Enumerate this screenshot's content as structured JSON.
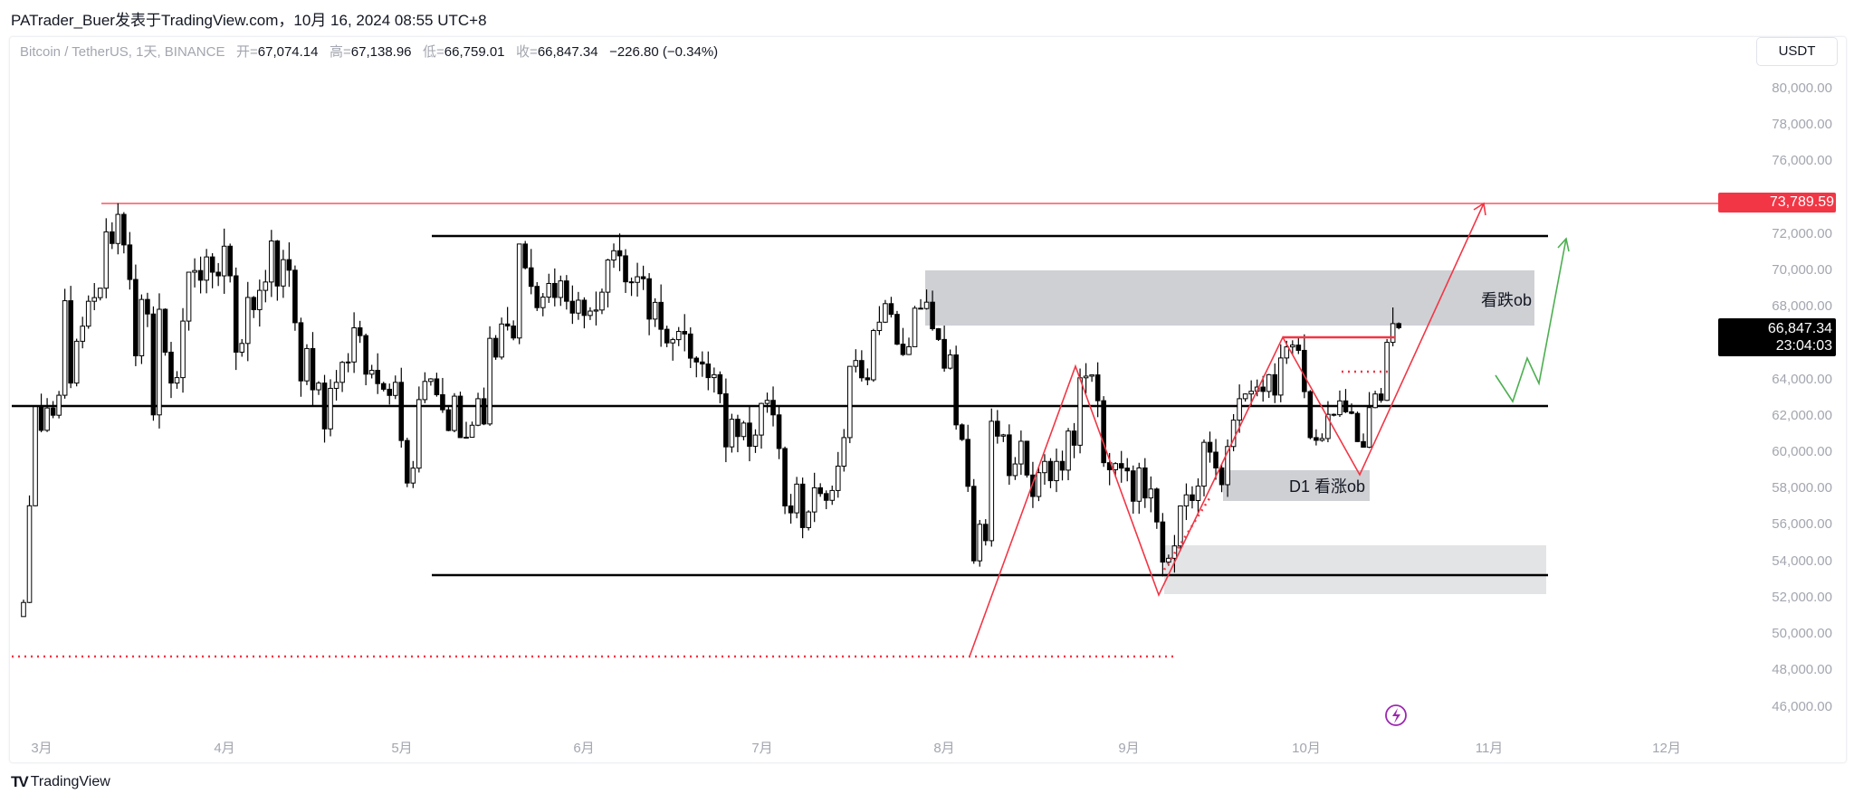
{
  "header": {
    "title": "PATrader_Buer发表于TradingView.com，10月 16, 2024 08:55 UTC+8"
  },
  "legend": {
    "symbol": "Bitcoin / TetherUS, 1天, BINANCE",
    "open_label": "开=",
    "open": "67,074.14",
    "high_label": "高=",
    "high": "67,138.96",
    "low_label": "低=",
    "low": "66,759.01",
    "close_label": "收=",
    "close": "66,847.34",
    "change": "−226.80 (−0.34%)"
  },
  "currency_button": "USDT",
  "price_axis": [
    "80,000.00",
    "78,000.00",
    "76,000.00",
    "72,000.00",
    "70,000.00",
    "68,000.00",
    "64,000.00",
    "62,000.00",
    "60,000.00",
    "58,000.00",
    "56,000.00",
    "54,000.00",
    "52,000.00",
    "50,000.00",
    "48,000.00",
    "46,000.00"
  ],
  "time_axis": [
    "3月",
    "4月",
    "5月",
    "6月",
    "7月",
    "8月",
    "9月",
    "10月",
    "11月",
    "12月"
  ],
  "price_tags": {
    "horizontal_line": "73,789.59",
    "last_price": "66,847.34",
    "countdown": "23:04:03"
  },
  "annotations": {
    "bearish_ob": "看跌ob",
    "bullish_ob": "D1 看涨ob"
  },
  "footer": {
    "logo_mark": "TV",
    "brand": "TradingView"
  },
  "colors": {
    "up": "#ffffff",
    "down": "#000000",
    "drawing_red": "#f23645",
    "drawing_green": "#4caf50",
    "zone_gray": "#cfd0d4",
    "zone_light": "#e3e4e6",
    "alert_purple": "#9c27b0"
  },
  "icons": {
    "alert": "lightning-icon"
  },
  "chart_data": {
    "type": "candlestick",
    "interval": "1D",
    "ylim": [
      45000,
      81000
    ],
    "closes": [
      51730,
      57050,
      62500,
      61200,
      62430,
      62030,
      63130,
      68330,
      63800,
      66100,
      66930,
      68300,
      68500,
      69020,
      72120,
      71480,
      73080,
      71400,
      69500,
      65300,
      68400,
      67600,
      62050,
      67860,
      65500,
      63800,
      64100,
      67210,
      69900,
      69990,
      69460,
      70740,
      69900,
      69700,
      71330,
      69700,
      65500,
      65980,
      68510,
      67840,
      68900,
      69360,
      71620,
      69140,
      70590,
      70010,
      67120,
      63920,
      65700,
      63430,
      63800,
      61280,
      63510,
      63840,
      64940,
      64960,
      66840,
      66410,
      64290,
      64500,
      63770,
      63460,
      63120,
      63840,
      60640,
      58300,
      59120,
      62890,
      63890,
      64030,
      63160,
      62330,
      61190,
      63080,
      60800,
      60820,
      61480,
      62940,
      61550,
      66260,
      65230,
      67050,
      66940,
      66280,
      71450,
      70140,
      69120,
      67950,
      68530,
      69280,
      68510,
      69420,
      68300,
      67650,
      68360,
      67520,
      67760,
      67820,
      68800,
      70570,
      71080,
      70800,
      69370,
      69340,
      69650,
      69540,
      67320,
      68240,
      66760,
      66010,
      66190,
      66640,
      66500,
      65170,
      64960,
      64850,
      64100,
      64260,
      63210,
      60290,
      61810,
      60860,
      61600,
      60320,
      60940,
      62680,
      62850,
      62050,
      60200,
      57040,
      56660,
      58240,
      55850,
      56710,
      58040,
      57720,
      57350,
      57890,
      59230,
      60800,
      64720,
      65040,
      64090,
      63980,
      66690,
      67150,
      68170,
      67580,
      65940,
      65370,
      65800,
      67920,
      67900,
      68250,
      66790,
      66200,
      64620,
      65350,
      61500,
      60700,
      58120,
      54020,
      56030,
      55130,
      61700,
      60880,
      60950,
      58710,
      59350,
      60600,
      58740,
      57560,
      58870,
      59490,
      58430,
      59490,
      59010,
      61160,
      60380,
      64090,
      64180,
      64250,
      62830,
      59420,
      59030,
      59370,
      59120,
      58970,
      57300,
      59130,
      57480,
      57970,
      56160,
      53950,
      54160,
      54840,
      57040,
      57650,
      57340,
      58130,
      60540,
      60000,
      59130,
      58210,
      60310,
      61760,
      62940,
      63200,
      63350,
      63580,
      63340,
      64260,
      63140,
      65180,
      65790,
      65890,
      65600,
      63330,
      60800,
      60650,
      60750,
      62080,
      62060,
      62820,
      62220,
      62130,
      60580,
      60270,
      62450,
      63200,
      62850,
      66040,
      67070,
      66847.34
    ],
    "last_candle": {
      "open": 67074.14,
      "high": 67138.96,
      "low": 66759.01,
      "close": 66847.34
    },
    "horizontal_levels": [
      73789.59,
      72000,
      62500,
      53300
    ],
    "zones": [
      {
        "label": "看跌ob",
        "top": 70000,
        "bottom": 67000
      },
      {
        "label": "D1 看涨ob",
        "top": 59000,
        "bottom": 57300
      },
      {
        "label": "",
        "top": 54900,
        "bottom": 52200
      }
    ],
    "dotted_level": 48900
  }
}
